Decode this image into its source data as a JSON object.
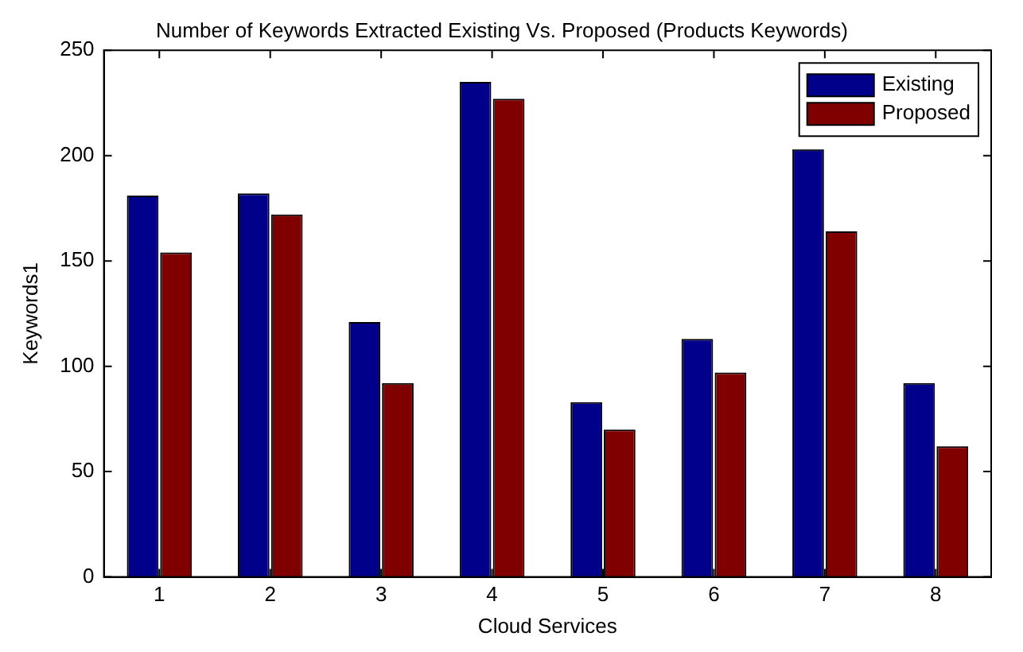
{
  "chart_data": {
    "type": "bar",
    "title": "Number of Keywords Extracted Existing Vs. Proposed (Products Keywords)",
    "xlabel": "Cloud Services",
    "ylabel": "Keywords1",
    "categories": [
      "1",
      "2",
      "3",
      "4",
      "5",
      "6",
      "7",
      "8"
    ],
    "series": [
      {
        "name": "Existing",
        "color": "#00008b",
        "values": [
          181,
          182,
          121,
          235,
          83,
          113,
          203,
          92
        ]
      },
      {
        "name": "Proposed",
        "color": "#800000",
        "values": [
          154,
          172,
          92,
          227,
          70,
          97,
          164,
          62
        ]
      }
    ],
    "ylim": [
      0,
      250
    ],
    "yticks": [
      0,
      50,
      100,
      150,
      200,
      250
    ],
    "grid": false,
    "legend": "top right"
  }
}
